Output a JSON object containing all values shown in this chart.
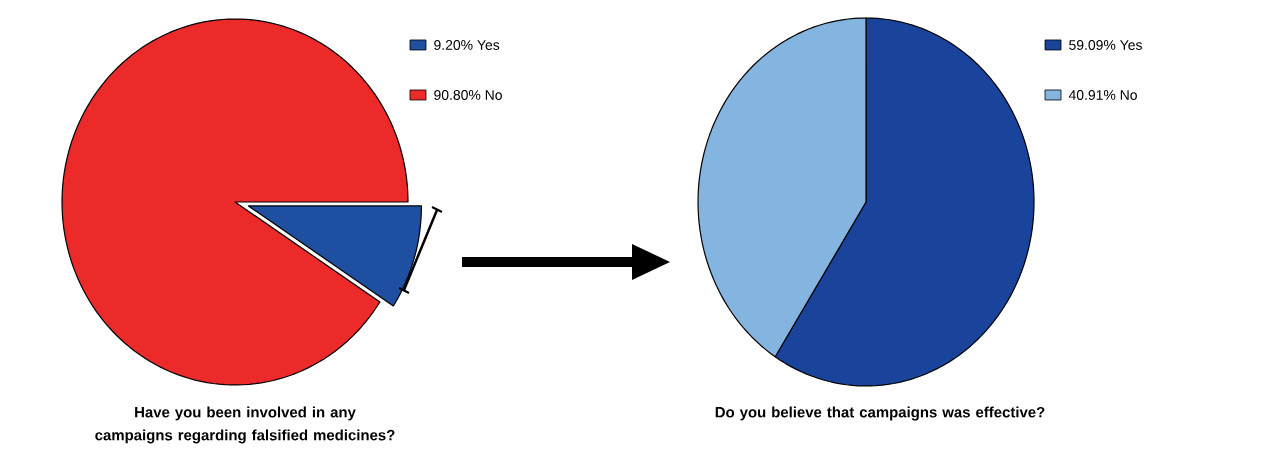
{
  "chart_data": [
    {
      "type": "pie",
      "title": "Have you been involved in any campaigns regarding falsified medicines?",
      "categories": [
        "9.20% Yes",
        "90.80% No"
      ],
      "values": [
        9.2,
        90.8
      ],
      "colors": [
        "#1f4fa0",
        "#ec2a2a"
      ],
      "legend": "top right"
    },
    {
      "type": "pie",
      "title": "Do you believe that campaigns was effective?",
      "categories": [
        "59.09% Yes",
        "40.91% No"
      ],
      "values": [
        59.09,
        40.91
      ],
      "colors": [
        "#1a449c",
        "#84b4e0"
      ],
      "legend": "top right"
    }
  ]
}
